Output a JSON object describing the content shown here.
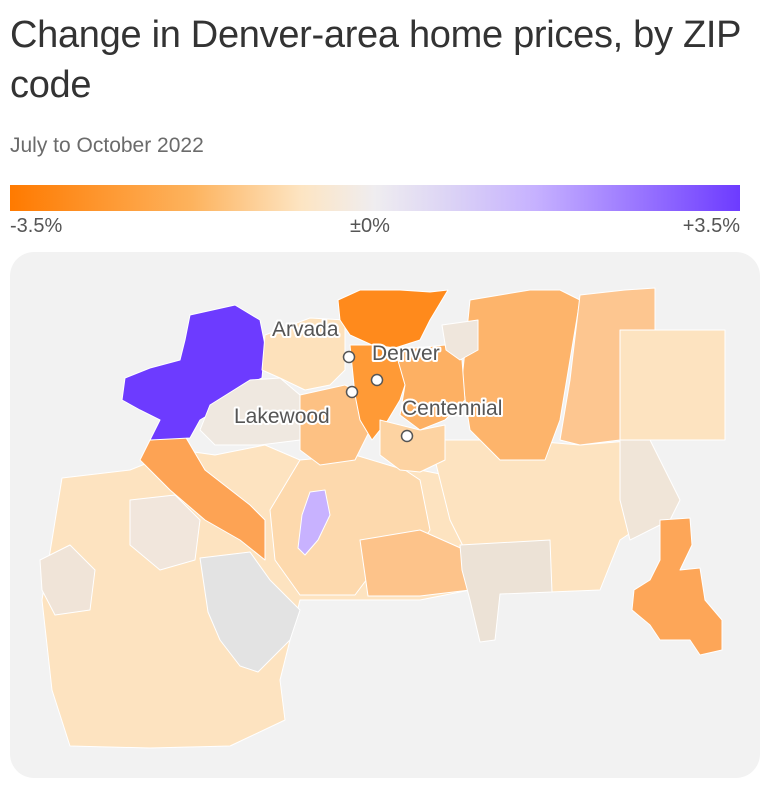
{
  "title": "Change in Denver-area home prices, by ZIP code",
  "subtitle": "July to October 2022",
  "legend": {
    "min_label": "-3.5%",
    "mid_label": "±0%",
    "max_label": "+3.5%",
    "colors": [
      "#ff7a00",
      "#fdb35e",
      "#fde5c3",
      "#efedf0",
      "#c6b1ff",
      "#6d3bff"
    ]
  },
  "cities": [
    {
      "name": "Arvada"
    },
    {
      "name": "Denver"
    },
    {
      "name": "Lakewood"
    },
    {
      "name": "Centennial"
    }
  ]
}
